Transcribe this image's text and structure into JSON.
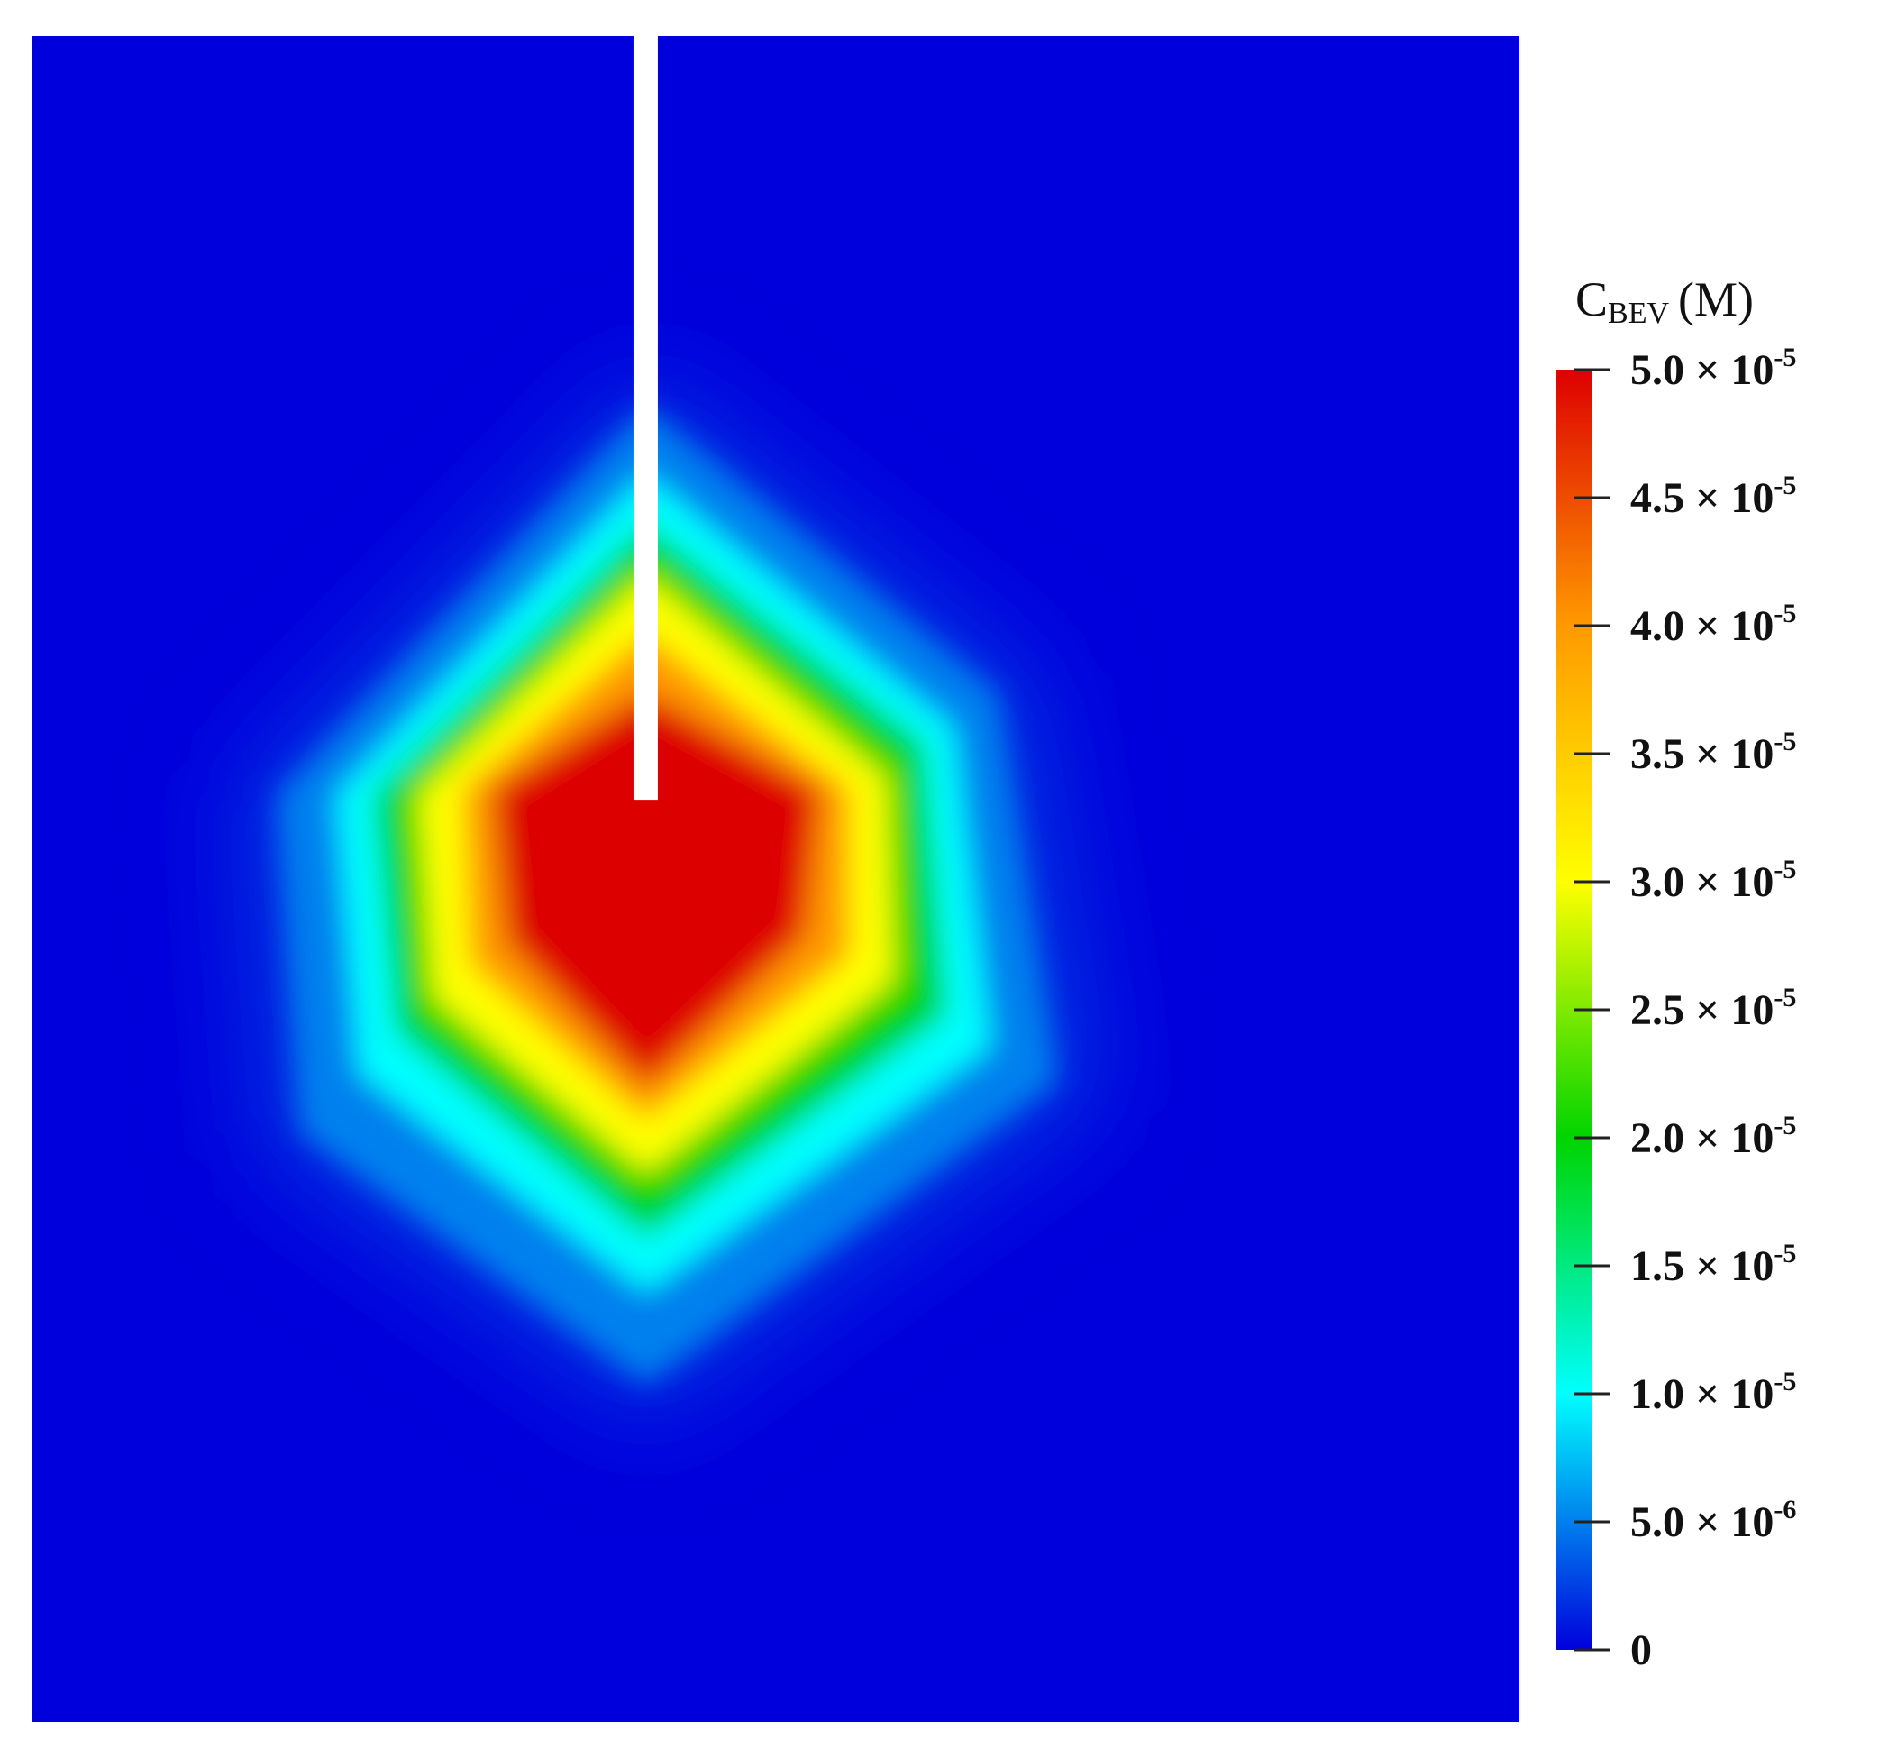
{
  "chart_data": {
    "type": "heatmap",
    "title": "",
    "colorbar": {
      "title": {
        "symbol": "C",
        "subscript": "BEV",
        "unit": "(M)"
      },
      "range": [
        0,
        5e-05
      ],
      "colormap": "rainbow (blue → cyan → green → yellow → red)",
      "colors": [
        "#0000dc",
        "#00ffff",
        "#00d400",
        "#ffff00",
        "#ff9900",
        "#dd0000"
      ],
      "ticks": [
        {
          "value": 5e-05,
          "mantissa": "5.0",
          "exponent": "-5"
        },
        {
          "value": 4.5e-05,
          "mantissa": "4.5",
          "exponent": "-5"
        },
        {
          "value": 4e-05,
          "mantissa": "4.0",
          "exponent": "-5"
        },
        {
          "value": 3.5e-05,
          "mantissa": "3.5",
          "exponent": "-5"
        },
        {
          "value": 3e-05,
          "mantissa": "3.0",
          "exponent": "-5"
        },
        {
          "value": 2.5e-05,
          "mantissa": "2.5",
          "exponent": "-5"
        },
        {
          "value": 2e-05,
          "mantissa": "2.0",
          "exponent": "-5"
        },
        {
          "value": 1.5e-05,
          "mantissa": "1.5",
          "exponent": "-5"
        },
        {
          "value": 1e-05,
          "mantissa": "1.0",
          "exponent": "-5"
        },
        {
          "value": 5e-06,
          "mantissa": "5.0",
          "exponent": "-6"
        },
        {
          "value": 0,
          "mantissa": "0",
          "exponent": ""
        }
      ]
    },
    "field": {
      "description_shown": "2D concentration field with a white needle inserted from the top edge",
      "background_value": 0,
      "max_value": 5e-05,
      "bounds": {
        "x": [
          0,
          1
        ],
        "y": [
          0,
          1
        ]
      },
      "needle": {
        "x": 0.413,
        "tip_y": 0.453
      },
      "plume_contours": [
        {
          "value": 5e-05,
          "points": [
            [
              0.413,
              0.39
            ],
            [
              0.53,
              0.447
            ],
            [
              0.52,
              0.533
            ],
            [
              0.413,
              0.623
            ],
            [
              0.32,
              0.537
            ],
            [
              0.31,
              0.447
            ]
          ]
        },
        {
          "value": 4e-05,
          "points": [
            [
              0.413,
              0.355
            ],
            [
              0.55,
              0.447
            ],
            [
              0.55,
              0.545
            ],
            [
              0.413,
              0.643
            ],
            [
              0.295,
              0.55
            ],
            [
              0.29,
              0.447
            ]
          ]
        },
        {
          "value": 3e-05,
          "points": [
            [
              0.413,
              0.32
            ],
            [
              0.575,
              0.44
            ],
            [
              0.58,
              0.56
            ],
            [
              0.413,
              0.675
            ],
            [
              0.27,
              0.57
            ],
            [
              0.26,
              0.45
            ]
          ]
        },
        {
          "value": 2e-05,
          "points": [
            [
              0.413,
              0.29
            ],
            [
              0.6,
              0.42
            ],
            [
              0.615,
              0.58
            ],
            [
              0.413,
              0.712
            ],
            [
              0.245,
              0.59
            ],
            [
              0.23,
              0.45
            ]
          ]
        },
        {
          "value": 1e-05,
          "points": [
            [
              0.413,
              0.26
            ],
            [
              0.62,
              0.41
            ],
            [
              0.645,
              0.6
            ],
            [
              0.413,
              0.745
            ],
            [
              0.22,
              0.615
            ],
            [
              0.205,
              0.45
            ]
          ]
        },
        {
          "value": 5e-06,
          "points": [
            [
              0.413,
              0.22
            ],
            [
              0.65,
              0.39
            ],
            [
              0.69,
              0.62
            ],
            [
              0.413,
              0.8
            ],
            [
              0.18,
              0.65
            ],
            [
              0.165,
              0.45
            ]
          ]
        }
      ]
    }
  }
}
